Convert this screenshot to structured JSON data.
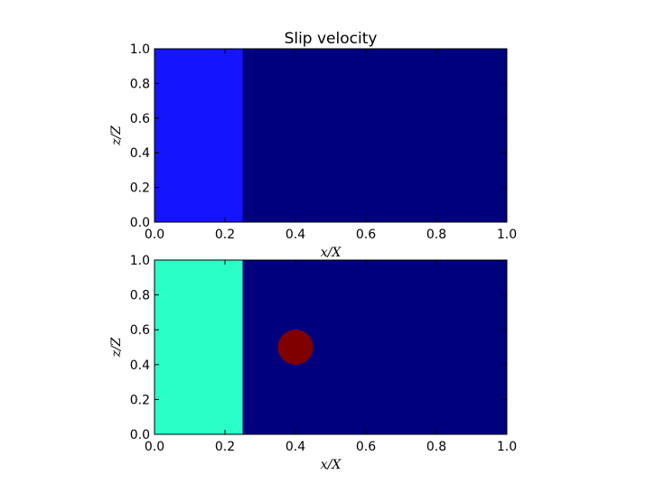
{
  "chart_data": [
    {
      "type": "heatmap",
      "title": "Slip velocity",
      "xlabel": "x/X",
      "ylabel": "z/Z",
      "xlim": [
        0.0,
        1.0
      ],
      "ylim": [
        0.0,
        1.0
      ],
      "xticks": [
        "0.0",
        "0.2",
        "0.4",
        "0.6",
        "0.8",
        "1.0"
      ],
      "yticks": [
        "0.0",
        "0.2",
        "0.4",
        "0.6",
        "0.8",
        "1.0"
      ],
      "background_color": "#00007f",
      "regions": [
        {
          "shape": "rect",
          "x": [
            0.0,
            0.25
          ],
          "z": [
            0.0,
            1.0
          ],
          "color": "#1414ff"
        }
      ]
    },
    {
      "type": "heatmap",
      "title": "",
      "xlabel": "x/X",
      "ylabel": "z/Z",
      "xlim": [
        0.0,
        1.0
      ],
      "ylim": [
        0.0,
        1.0
      ],
      "xticks": [
        "0.0",
        "0.2",
        "0.4",
        "0.6",
        "0.8",
        "1.0"
      ],
      "yticks": [
        "0.0",
        "0.2",
        "0.4",
        "0.6",
        "0.8",
        "1.0"
      ],
      "background_color": "#00007f",
      "regions": [
        {
          "shape": "rect",
          "x": [
            0.0,
            0.25
          ],
          "z": [
            0.0,
            1.0
          ],
          "color": "#29ffc6"
        },
        {
          "shape": "circle",
          "cx": 0.4,
          "cz": 0.5,
          "r": 0.05,
          "color": "#800000"
        }
      ]
    }
  ]
}
